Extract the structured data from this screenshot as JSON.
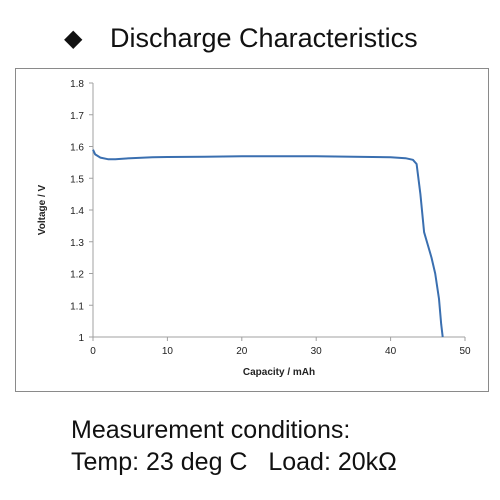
{
  "header": {
    "bullet": "◆",
    "title": "Discharge Characteristics"
  },
  "conditions": {
    "line1": "Measurement conditions:",
    "temp": "Temp: 23 deg C",
    "load": "Load: 20kΩ"
  },
  "colors": {
    "series": "#3a6fb0",
    "frame": "#8a8a8a",
    "axis": "#a0a0a0"
  },
  "chart_data": {
    "type": "line",
    "title": "",
    "xlabel": "Capacity  /  mAh",
    "ylabel": "Voltage  /  V",
    "xlim": [
      0,
      50
    ],
    "ylim": [
      1.0,
      1.8
    ],
    "xticks": [
      0,
      10,
      20,
      30,
      40,
      50
    ],
    "yticks": [
      1.0,
      1.1,
      1.2,
      1.3,
      1.4,
      1.5,
      1.6,
      1.7,
      1.8
    ],
    "xtick_labels": [
      "0",
      "10",
      "20",
      "30",
      "40",
      "50"
    ],
    "ytick_labels": [
      "1",
      "1.1",
      "1.2",
      "1.3",
      "1.4",
      "1.5",
      "1.6",
      "1.7",
      "1.8"
    ],
    "grid": false,
    "legend": "none",
    "series": [
      {
        "x": [
          0,
          0.3,
          1,
          2,
          3,
          5,
          8,
          10,
          15,
          20,
          25,
          30,
          35,
          40,
          42,
          43,
          43.5,
          44,
          44.5,
          45,
          45.5,
          46,
          46.5,
          46.8,
          47
        ],
        "y": [
          1.59,
          1.575,
          1.565,
          1.56,
          1.56,
          1.563,
          1.566,
          1.567,
          1.568,
          1.569,
          1.569,
          1.569,
          1.568,
          1.566,
          1.563,
          1.558,
          1.545,
          1.45,
          1.33,
          1.29,
          1.25,
          1.2,
          1.12,
          1.04,
          1.0
        ]
      }
    ]
  }
}
